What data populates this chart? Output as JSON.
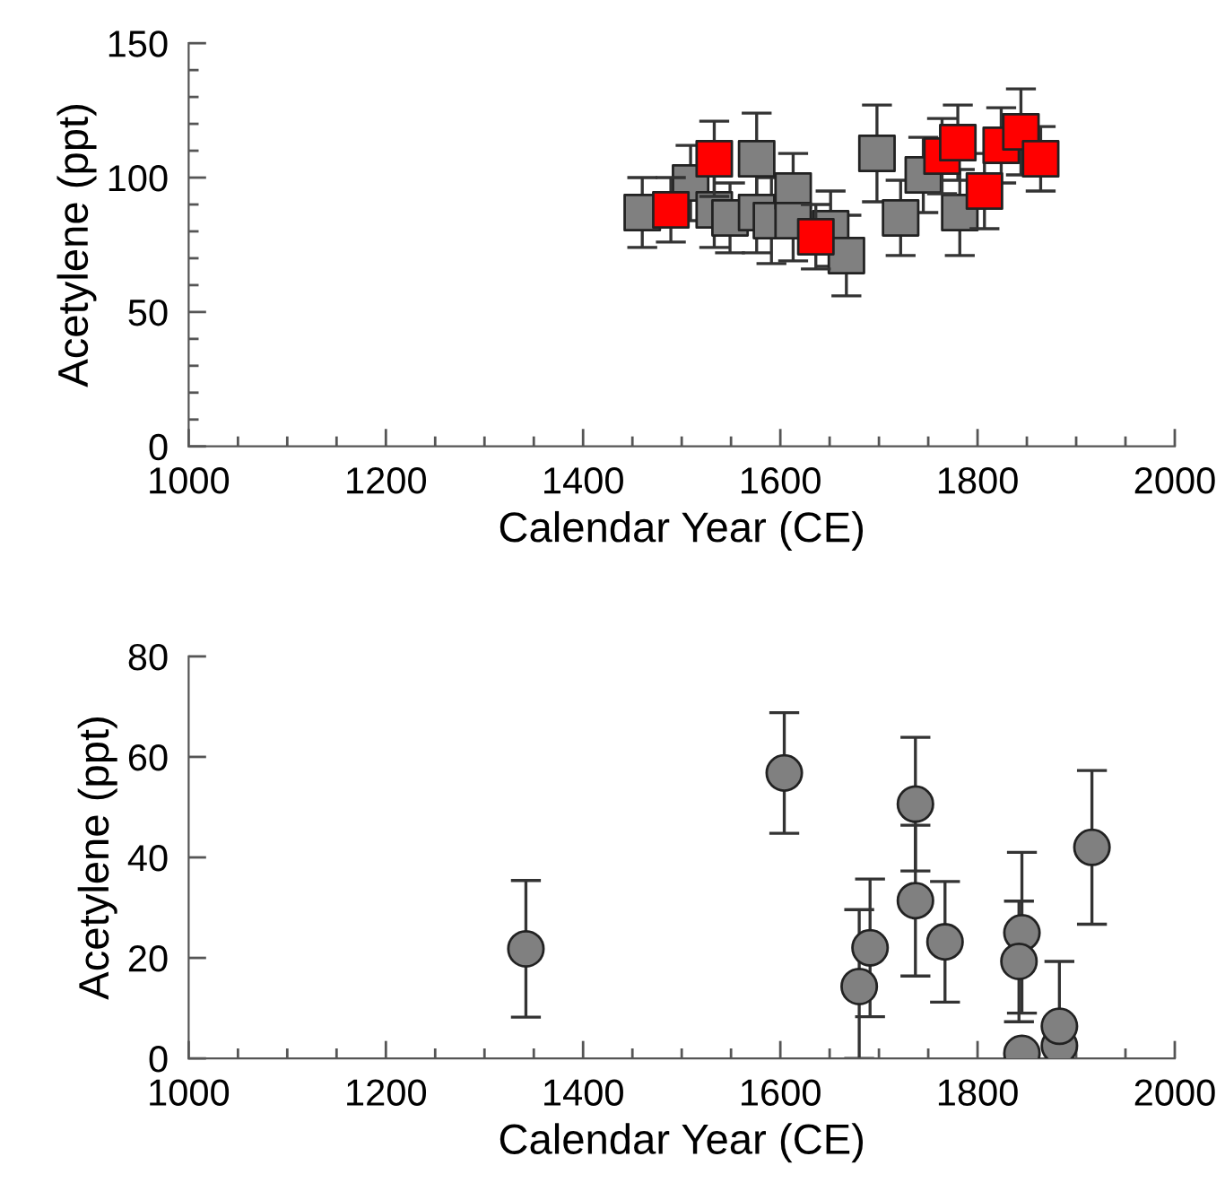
{
  "chart_data": [
    {
      "type": "scatter",
      "xlabel": "Calendar Year (CE)",
      "ylabel": "Acetylene (ppt)",
      "marker": "square",
      "xlim": [
        1000,
        2000
      ],
      "ylim": [
        0,
        150
      ],
      "xticks": [
        1000,
        {
          "value": 1050,
          "label": null
        },
        {
          "value": 1100,
          "label": null
        },
        {
          "value": 1150,
          "label": null
        },
        1200,
        {
          "value": 1250,
          "label": null
        },
        {
          "value": 1300,
          "label": null
        },
        {
          "value": 1350,
          "label": null
        },
        1400,
        {
          "value": 1450,
          "label": null
        },
        {
          "value": 1500,
          "label": null
        },
        {
          "value": 1550,
          "label": null
        },
        1600,
        {
          "value": 1650,
          "label": null
        },
        {
          "value": 1700,
          "label": null
        },
        {
          "value": 1750,
          "label": null
        },
        1800,
        {
          "value": 1850,
          "label": null
        },
        {
          "value": 1900,
          "label": null
        },
        {
          "value": 1950,
          "label": null
        },
        2000
      ],
      "yticks": [
        0,
        {
          "value": 10,
          "label": null
        },
        {
          "value": 20,
          "label": null
        },
        {
          "value": 30,
          "label": null
        },
        {
          "value": 40,
          "label": null
        },
        50,
        {
          "value": 60,
          "label": null
        },
        {
          "value": 70,
          "label": null
        },
        {
          "value": 80,
          "label": null
        },
        {
          "value": 90,
          "label": null
        },
        100,
        {
          "value": 110,
          "label": null
        },
        {
          "value": 120,
          "label": null
        },
        {
          "value": 130,
          "label": null
        },
        {
          "value": 140,
          "label": null
        },
        150
      ],
      "series": [
        {
          "color": "#808080",
          "x": [
            1460,
            1509,
            1533,
            1549,
            1576,
            1576,
            1591,
            1613,
            1613,
            1651,
            1667,
            1698,
            1722,
            1745,
            1782
          ],
          "values": [
            87,
            98,
            88,
            85,
            107,
            87,
            84,
            95,
            84,
            81,
            71,
            109,
            85,
            101,
            87
          ],
          "errors": [
            13,
            14,
            14,
            13,
            17,
            15,
            16,
            14,
            15,
            14,
            15,
            18,
            14,
            14,
            16
          ]
        },
        {
          "color": "#ff0000",
          "x": [
            1489,
            1533,
            1636,
            1764,
            1780,
            1807,
            1824,
            1844,
            1864
          ],
          "values": [
            88,
            107,
            78,
            108,
            113,
            95,
            112,
            117,
            107
          ],
          "errors": [
            12,
            14,
            12,
            14,
            14,
            14,
            14,
            16,
            12
          ]
        }
      ]
    },
    {
      "type": "scatter",
      "xlabel": "Calendar Year (CE)",
      "ylabel": "Acetylene (ppt)",
      "marker": "circle",
      "xlim": [
        1000,
        2000
      ],
      "ylim": [
        0,
        80
      ],
      "xticks": [
        1000,
        {
          "value": 1050,
          "label": null
        },
        {
          "value": 1100,
          "label": null
        },
        {
          "value": 1150,
          "label": null
        },
        1200,
        {
          "value": 1250,
          "label": null
        },
        {
          "value": 1300,
          "label": null
        },
        {
          "value": 1350,
          "label": null
        },
        1400,
        {
          "value": 1450,
          "label": null
        },
        {
          "value": 1500,
          "label": null
        },
        {
          "value": 1550,
          "label": null
        },
        1600,
        {
          "value": 1650,
          "label": null
        },
        {
          "value": 1700,
          "label": null
        },
        {
          "value": 1750,
          "label": null
        },
        1800,
        {
          "value": 1850,
          "label": null
        },
        {
          "value": 1900,
          "label": null
        },
        {
          "value": 1950,
          "label": null
        },
        2000
      ],
      "yticks": [
        0,
        20,
        40,
        60,
        80
      ],
      "series": [
        {
          "color": "#808080",
          "x": [
            1342,
            1604,
            1680,
            1691,
            1737,
            1737,
            1767,
            1845,
            1842,
            1845,
            1883,
            1883,
            1916
          ],
          "values": [
            21.8,
            56.8,
            14.3,
            22,
            50.6,
            31.4,
            23.2,
            25,
            19.3,
            1,
            2.5,
            6.4,
            42
          ],
          "errors": [
            13.6,
            12,
            [
              0,
              29.6
            ],
            13.7,
            13.3,
            15,
            12,
            16,
            12,
            null,
            null,
            [
              0,
              19.3
            ],
            15.3
          ]
        }
      ]
    }
  ]
}
